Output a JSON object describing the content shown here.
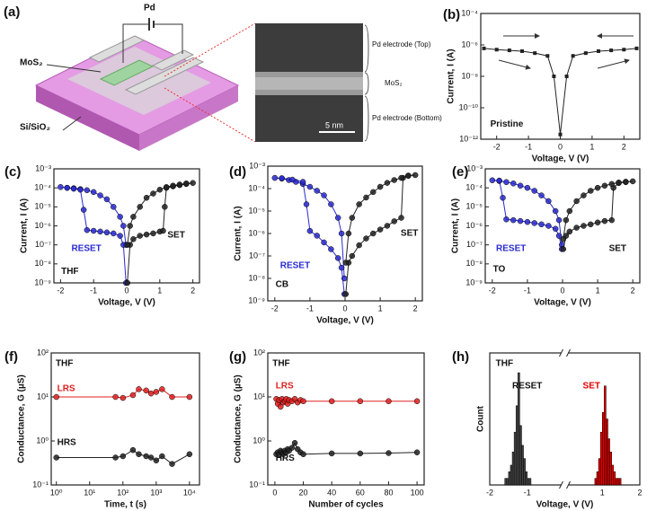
{
  "diagram": {
    "panel": "(a)",
    "source_label": "Pd",
    "layer_label": "MoS₂",
    "substrate_label": "Si/SiO₂",
    "tem_top": "Pd electrode (Top)",
    "tem_middle": "MoS₂",
    "tem_bottom": "Pd electrode (Bottom)",
    "scale_bar": "5 nm"
  },
  "chart_data": [
    {
      "type": "line",
      "panel": "(b)",
      "xlabel": "Voltage, V (V)",
      "ylabel": "Current, I (A)",
      "ylog": true,
      "marker": "square",
      "annotations": [
        "Pristine"
      ],
      "xlim": [
        -2.5,
        2.5
      ],
      "xticks": [
        -2,
        -1,
        0,
        1,
        2
      ],
      "ylim": [
        1e-12,
        0.0001
      ],
      "yticks": [
        {
          "value": 1e-12,
          "label": "10⁻¹²"
        },
        {
          "value": 1e-10,
          "label": "10⁻¹⁰"
        },
        {
          "value": 1e-08,
          "label": "10⁻⁸"
        },
        {
          "value": 1e-06,
          "label": "10⁻⁶"
        },
        {
          "value": 0.0001,
          "label": "10⁻⁴"
        }
      ],
      "series": [
        {
          "color": "#222222",
          "x": [
            -2.4,
            -2,
            -1.6,
            -1.2,
            -0.8,
            -0.4,
            -0.2,
            0,
            0.2,
            0.4,
            0.8,
            1.2,
            1.6,
            2,
            2.4
          ],
          "values": [
            6e-07,
            5e-07,
            4.5e-07,
            4e-07,
            3e-07,
            2e-07,
            1e-08,
            2e-12,
            1e-08,
            2e-07,
            3e-07,
            4e-07,
            4.5e-07,
            5e-07,
            6e-07
          ]
        }
      ]
    },
    {
      "type": "line",
      "panel": "(c)",
      "xlabel": "Voltage, V (V)",
      "ylabel": "Current, I (A)",
      "ylog": true,
      "marker": "circle",
      "annotations": [
        "THF",
        "RESET",
        "SET"
      ],
      "xlim": [
        -2.2,
        2.2
      ],
      "xticks": [
        -2,
        -1,
        0,
        1,
        2
      ],
      "ylim": [
        1e-09,
        0.001
      ],
      "yticks": [
        {
          "value": 1e-09,
          "label": "10⁻⁹"
        },
        {
          "value": 1e-08,
          "label": "10⁻⁸"
        },
        {
          "value": 1e-07,
          "label": "10⁻⁷"
        },
        {
          "value": 1e-06,
          "label": "10⁻⁶"
        },
        {
          "value": 1e-05,
          "label": "10⁻⁵"
        },
        {
          "value": 0.0001,
          "label": "10⁻⁴"
        },
        {
          "value": 0.001,
          "label": "10⁻³"
        }
      ],
      "series": [
        {
          "color": "#2a2ad0",
          "x": [
            -0.02,
            -0.1,
            -0.2,
            -0.4,
            -0.6,
            -0.8,
            -1,
            -1.2,
            -1.4,
            -1.6,
            -1.8,
            -2,
            -1.8,
            -1.6,
            -1.4,
            -1.3,
            -1.2,
            -1,
            -0.8,
            -0.6,
            -0.4,
            -0.2,
            -0.1,
            -0.02
          ],
          "values": [
            1e-07,
            1e-06,
            3e-06,
            1e-05,
            2.5e-05,
            4e-05,
            6e-05,
            7.5e-05,
            8.5e-05,
            9.5e-05,
            0.0001,
            0.00011,
            0.0001,
            9e-05,
            8e-05,
            7e-06,
            6e-07,
            5.5e-07,
            5e-07,
            4.5e-07,
            4e-07,
            3e-07,
            1e-07,
            1e-09
          ]
        },
        {
          "color": "#222222",
          "x": [
            0.02,
            0.1,
            0.2,
            0.4,
            0.6,
            0.8,
            1,
            1.1,
            1.15,
            1.2,
            1.4,
            1.6,
            1.8,
            2,
            1.8,
            1.6,
            1.4,
            1.2,
            1,
            0.8,
            0.6,
            0.4,
            0.2,
            0.1,
            0.02
          ],
          "values": [
            1e-09,
            1e-07,
            2e-07,
            3e-07,
            3.5e-07,
            4e-07,
            5e-07,
            5.5e-07,
            1e-05,
            0.0001,
            0.00012,
            0.00014,
            0.00016,
            0.00018,
            0.00017,
            0.00015,
            0.00013,
            0.00011,
            8e-05,
            5e-05,
            3e-05,
            1e-05,
            3e-06,
            1e-06,
            1e-07
          ]
        }
      ]
    },
    {
      "type": "line",
      "panel": "(d)",
      "xlabel": "Voltage, V (V)",
      "ylabel": "Current, I (A)",
      "ylog": true,
      "marker": "circle",
      "annotations": [
        "CB",
        "RESET",
        "SET"
      ],
      "xlim": [
        -2.2,
        2.2
      ],
      "xticks": [
        -2,
        -1,
        0,
        1,
        2
      ],
      "ylim": [
        1e-09,
        0.001
      ],
      "yticks": [
        {
          "value": 1e-09,
          "label": "10⁻⁹"
        },
        {
          "value": 1e-08,
          "label": "10⁻⁸"
        },
        {
          "value": 1e-07,
          "label": "10⁻⁷"
        },
        {
          "value": 1e-06,
          "label": "10⁻⁶"
        },
        {
          "value": 1e-05,
          "label": "10⁻⁵"
        },
        {
          "value": 0.0001,
          "label": "10⁻⁴"
        },
        {
          "value": 0.001,
          "label": "10⁻³"
        }
      ],
      "series": [
        {
          "color": "#2a2ad0",
          "x": [
            -0.02,
            -0.1,
            -0.2,
            -0.4,
            -0.6,
            -0.8,
            -1,
            -1.2,
            -1.4,
            -1.6,
            -1.8,
            -2,
            -1.8,
            -1.5,
            -1.2,
            -1.1,
            -1,
            -0.8,
            -0.6,
            -0.4,
            -0.2,
            -0.1,
            -0.02
          ],
          "values": [
            1e-08,
            1e-06,
            5e-06,
            2e-05,
            5e-05,
            8e-05,
            0.00012,
            0.00016,
            0.0002,
            0.00024,
            0.00028,
            0.0003,
            0.00029,
            0.00025,
            0.0002,
            2e-05,
            1.3e-06,
            8e-07,
            4e-07,
            2e-07,
            8e-08,
            3e-08,
            2e-09
          ]
        },
        {
          "color": "#222222",
          "x": [
            0.02,
            0.1,
            0.2,
            0.4,
            0.6,
            0.8,
            1,
            1.2,
            1.4,
            1.6,
            1.65,
            1.8,
            2,
            1.8,
            1.6,
            1.4,
            1.2,
            1,
            0.8,
            0.6,
            0.4,
            0.2,
            0.1,
            0.02
          ],
          "values": [
            2e-09,
            5e-08,
            1e-07,
            3e-07,
            6e-07,
            1e-06,
            1.5e-06,
            2.2e-06,
            3.5e-06,
            5e-06,
            0.0003,
            0.00038,
            0.0004,
            0.00037,
            0.0003,
            0.00024,
            0.00018,
            0.00012,
            7e-05,
            4e-05,
            2e-05,
            5e-06,
            1e-06,
            5e-08
          ]
        }
      ]
    },
    {
      "type": "line",
      "panel": "(e)",
      "xlabel": "Voltage, V (V)",
      "ylabel": "Current, I (A)",
      "ylog": true,
      "marker": "circle",
      "annotations": [
        "TO",
        "RESET",
        "SET"
      ],
      "xlim": [
        -2.2,
        2.2
      ],
      "xticks": [
        -2,
        -1,
        0,
        1,
        2
      ],
      "ylim": [
        1e-09,
        0.001
      ],
      "yticks": [
        {
          "value": 1e-09,
          "label": "10⁻⁹"
        },
        {
          "value": 1e-08,
          "label": "10⁻⁸"
        },
        {
          "value": 1e-07,
          "label": "10⁻⁷"
        },
        {
          "value": 1e-06,
          "label": "10⁻⁶"
        },
        {
          "value": 1e-05,
          "label": "10⁻⁵"
        },
        {
          "value": 0.0001,
          "label": "10⁻⁴"
        },
        {
          "value": 0.001,
          "label": "10⁻³"
        }
      ],
      "series": [
        {
          "color": "#2a2ad0",
          "x": [
            -0.02,
            -0.1,
            -0.2,
            -0.4,
            -0.6,
            -0.8,
            -1,
            -1.2,
            -1.4,
            -1.6,
            -1.8,
            -2,
            -1.8,
            -1.7,
            -1.6,
            -1.4,
            -1.2,
            -1,
            -0.8,
            -0.6,
            -0.4,
            -0.2,
            -0.1,
            -0.02
          ],
          "values": [
            1e-07,
            2e-06,
            6e-06,
            2e-05,
            4e-05,
            7e-05,
            0.0001,
            0.00013,
            0.00017,
            0.0002,
            0.00023,
            0.00025,
            0.00024,
            3e-05,
            2.2e-06,
            2e-06,
            1.8e-06,
            1.6e-06,
            1.4e-06,
            1.2e-06,
            1e-06,
            7e-07,
            3e-07,
            6e-08
          ]
        },
        {
          "color": "#222222",
          "x": [
            0.02,
            0.1,
            0.2,
            0.4,
            0.6,
            0.8,
            1,
            1.2,
            1.4,
            1.45,
            1.6,
            1.8,
            2,
            1.8,
            1.6,
            1.4,
            1.2,
            1,
            0.8,
            0.6,
            0.4,
            0.2,
            0.1,
            0.02
          ],
          "values": [
            6e-08,
            3e-07,
            5e-07,
            8e-07,
            1e-06,
            1.2e-06,
            1.5e-06,
            1.8e-06,
            2e-06,
            0.0001,
            0.00018,
            0.0002,
            0.00022,
            0.00021,
            0.00019,
            0.00016,
            0.00013,
            0.0001,
            7e-05,
            4e-05,
            2e-05,
            6e-06,
            2e-06,
            2e-07
          ]
        }
      ]
    },
    {
      "type": "line",
      "panel": "(f)",
      "xlabel": "Time, t (s)",
      "ylabel": "Conductance, G (µS)",
      "ylog": true,
      "xlog": true,
      "marker": "circle",
      "annotations": [
        "THF",
        "LRS",
        "HRS"
      ],
      "xlim": [
        0.7,
        20000
      ],
      "xticks": [
        {
          "value": 1,
          "label": "10⁰"
        },
        {
          "value": 10,
          "label": "10¹"
        },
        {
          "value": 100,
          "label": "10²"
        },
        {
          "value": 1000,
          "label": "10³"
        },
        {
          "value": 10000,
          "label": "10⁴"
        }
      ],
      "ylim": [
        0.1,
        100
      ],
      "yticks": [
        {
          "value": 0.1,
          "label": "10⁻¹"
        },
        {
          "value": 1,
          "label": "10⁰"
        },
        {
          "value": 10,
          "label": "10¹"
        },
        {
          "value": 100,
          "label": "10²"
        }
      ],
      "series": [
        {
          "color": "#e02020",
          "x": [
            1,
            60,
            100,
            200,
            300,
            500,
            700,
            1000,
            1500,
            3000,
            10000
          ],
          "values": [
            10,
            10,
            9.5,
            11,
            15,
            14,
            12,
            13,
            15,
            10,
            10
          ]
        },
        {
          "color": "#222222",
          "x": [
            1,
            60,
            100,
            200,
            300,
            500,
            700,
            1000,
            1500,
            3000,
            10000
          ],
          "values": [
            0.42,
            0.42,
            0.45,
            0.62,
            0.5,
            0.45,
            0.42,
            0.36,
            0.45,
            0.3,
            0.5
          ]
        }
      ]
    },
    {
      "type": "line",
      "panel": "(g)",
      "xlabel": "Number of cycles",
      "ylabel": "Conductance, G (µS)",
      "ylog": true,
      "marker": "circle",
      "annotations": [
        "THF",
        "LRS",
        "HRS"
      ],
      "xlim": [
        -5,
        105
      ],
      "xticks": [
        0,
        20,
        40,
        60,
        80,
        100
      ],
      "ylim": [
        0.1,
        100
      ],
      "yticks": [
        {
          "value": 0.1,
          "label": "10⁻¹"
        },
        {
          "value": 1,
          "label": "10⁰"
        },
        {
          "value": 10,
          "label": "10¹"
        },
        {
          "value": 100,
          "label": "10²"
        }
      ],
      "series": [
        {
          "color": "#e02020",
          "x": [
            1,
            2,
            3,
            4,
            5,
            6,
            7,
            8,
            9,
            10,
            12,
            14,
            16,
            18,
            20,
            40,
            60,
            80,
            100
          ],
          "values": [
            9,
            7,
            8.5,
            6,
            9,
            7.5,
            8,
            9,
            7,
            8.5,
            8,
            9,
            7.5,
            8.5,
            8,
            8,
            8,
            8,
            8
          ]
        },
        {
          "color": "#222222",
          "x": [
            1,
            2,
            3,
            4,
            5,
            6,
            7,
            8,
            9,
            10,
            12,
            14,
            16,
            18,
            20,
            40,
            60,
            80,
            100
          ],
          "values": [
            0.5,
            0.55,
            0.5,
            0.6,
            0.55,
            0.5,
            0.6,
            0.55,
            0.65,
            0.6,
            0.7,
            0.9,
            0.65,
            0.55,
            0.5,
            0.52,
            0.52,
            0.53,
            0.55
          ]
        }
      ]
    },
    {
      "type": "histogram",
      "panel": "(h)",
      "xlabel": "Voltage, V (V)",
      "ylabel": "Count",
      "annotations": [
        "THF",
        "RESET",
        "SET"
      ],
      "xlim": [
        -2,
        2
      ],
      "xticks": [
        -2,
        -1,
        1,
        2
      ],
      "ylim": [
        0,
        20
      ],
      "series": [
        {
          "color": "#444444",
          "bins": [
            -1.6,
            -1.55,
            -1.5,
            -1.45,
            -1.4,
            -1.35,
            -1.3,
            -1.25,
            -1.2,
            -1.15,
            -1.1,
            -1.05,
            -1,
            -0.95,
            -0.9
          ],
          "values": [
            1,
            1,
            2,
            3,
            5,
            8,
            12,
            17,
            9,
            6,
            4,
            2,
            1,
            1
          ]
        },
        {
          "color": "#e00000",
          "bins": [
            0.8,
            0.85,
            0.9,
            0.95,
            1,
            1.05,
            1.1,
            1.15,
            1.2,
            1.25,
            1.3,
            1.35,
            1.4,
            1.45,
            1.5
          ],
          "values": [
            1,
            2,
            4,
            8,
            11,
            15,
            10,
            7,
            5,
            3,
            2,
            1,
            1,
            1
          ]
        }
      ]
    }
  ]
}
